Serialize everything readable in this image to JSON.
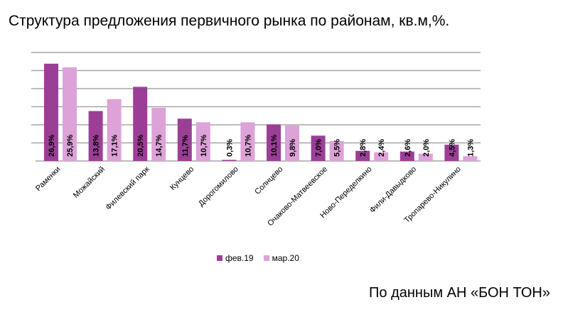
{
  "title": "Структура предложения первичного рынка по районам, кв.м,%.",
  "source": "По данным АН «БОН ТОН»",
  "chart_data": {
    "type": "bar",
    "title": "Структура предложения первичного рынка по районам, кв.м,%.",
    "xlabel": "",
    "ylabel": "",
    "ylim": [
      0,
      30
    ],
    "grid": true,
    "legend_position": "bottom",
    "categories": [
      "Раменки",
      "Можайский",
      "Филевский парк",
      "Кунцево",
      "Дорогомилово",
      "Солнцево",
      "Очаково-Матвеевское",
      "Ново-Переделкино",
      "Фили-Давыдково",
      "Тропарево-Никулино"
    ],
    "series": [
      {
        "name": "фев.19",
        "color": "#9b3f96",
        "values": [
          26.9,
          13.8,
          20.5,
          11.7,
          0.3,
          10.1,
          7.0,
          2.8,
          2.6,
          4.5
        ],
        "labels": [
          "26,9%",
          "13,8%",
          "20,5%",
          "11,7%",
          "0,3%",
          "10,1%",
          "7,0%",
          "2,8%",
          "2,6%",
          "4,5%"
        ]
      },
      {
        "name": "мар.20",
        "color": "#dda2d8",
        "values": [
          25.9,
          17.1,
          14.7,
          10.7,
          10.7,
          9.8,
          5.5,
          2.4,
          2.0,
          1.3
        ],
        "labels": [
          "25,9%",
          "17,1%",
          "14,7%",
          "10,7%",
          "10,7%",
          "9,8%",
          "5,5%",
          "2,4%",
          "2,0%",
          "1,3%"
        ]
      }
    ]
  }
}
